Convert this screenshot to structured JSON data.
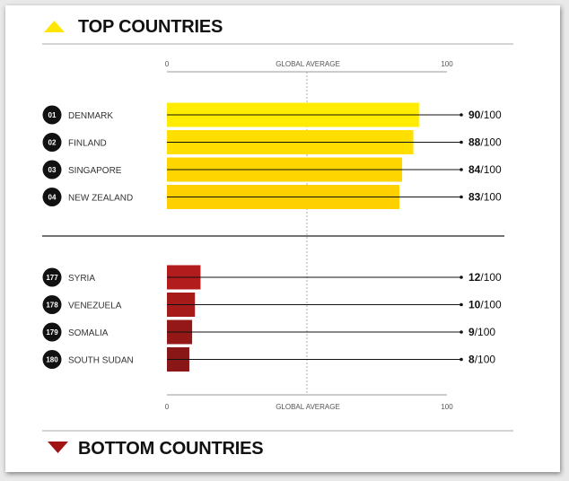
{
  "header": {
    "top_title": "TOP COUNTRIES",
    "bottom_title": "BOTTOM COUNTRIES"
  },
  "colors": {
    "top_accent": "#ffe600",
    "bottom_accent": "#a11414",
    "badge": "#111111"
  },
  "icons": {
    "top": "triangle-up-icon",
    "bottom": "triangle-down-icon"
  },
  "chart_data": {
    "type": "bar",
    "orientation": "horizontal",
    "xlim": [
      0,
      100
    ],
    "axis_labels": {
      "min": "0",
      "mid": "GLOBAL AVERAGE",
      "max": "100"
    },
    "global_average_line": true,
    "score_suffix": "/100",
    "groups": [
      {
        "group": "top",
        "rows": [
          {
            "rank": "01",
            "country": "DENMARK",
            "value": 90,
            "color": "#ffec00"
          },
          {
            "rank": "02",
            "country": "FINLAND",
            "value": 88,
            "color": "#ffde00"
          },
          {
            "rank": "03",
            "country": "SINGAPORE",
            "value": 84,
            "color": "#ffd500"
          },
          {
            "rank": "04",
            "country": "NEW ZEALAND",
            "value": 83,
            "color": "#ffd000"
          }
        ]
      },
      {
        "group": "bottom",
        "rows": [
          {
            "rank": "177",
            "country": "SYRIA",
            "value": 12,
            "color": "#b21c1c"
          },
          {
            "rank": "178",
            "country": "VENEZUELA",
            "value": 10,
            "color": "#a61a1a"
          },
          {
            "rank": "179",
            "country": "SOMALIA",
            "value": 9,
            "color": "#951818"
          },
          {
            "rank": "180",
            "country": "SOUTH SUDAN",
            "value": 8,
            "color": "#8a1717"
          }
        ]
      }
    ]
  }
}
